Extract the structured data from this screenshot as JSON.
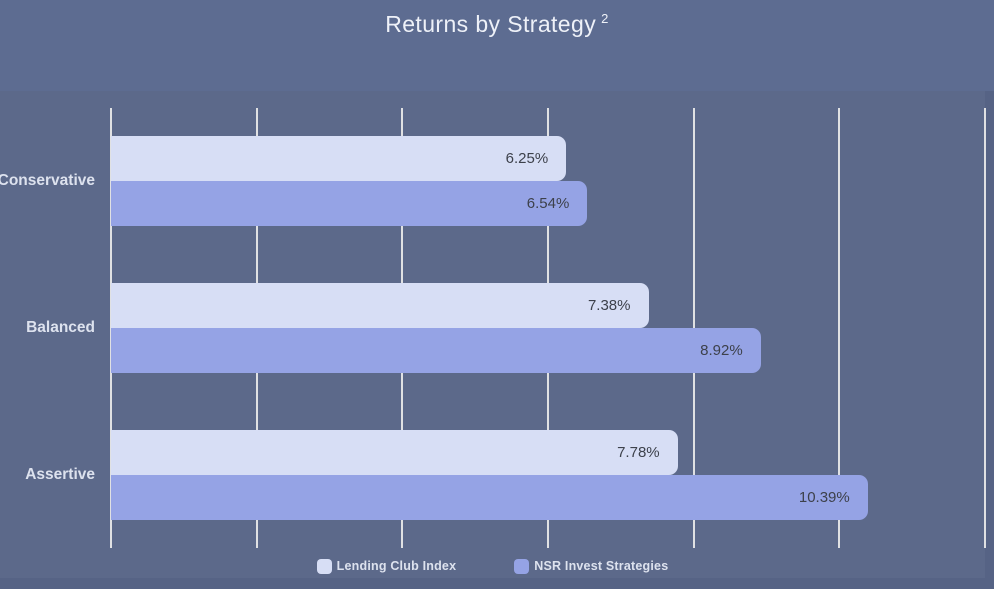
{
  "header": {
    "title": "Returns by Strategy",
    "superscript": "2"
  },
  "colors": {
    "header_bg": "#5d6c91",
    "chart_bg": "#5c698a",
    "outer_bg": "#566385",
    "bar_light": "#d7def5",
    "bar_medium": "#95a3e5",
    "grid": "#f2f1ef",
    "label_light": "#dde2ee",
    "value_dark": "#3d414b",
    "title_color": "#eef1f8"
  },
  "chart_data": {
    "type": "bar",
    "orientation": "horizontal",
    "title": "Returns by Strategy ²",
    "categories": [
      "Conservative",
      "Balanced",
      "Assertive"
    ],
    "series": [
      {
        "name": "Lending Club Index",
        "color_key": "bar_light",
        "values": [
          6.25,
          7.38,
          7.78
        ],
        "labels": [
          "6.25%",
          "7.38%",
          "7.78%"
        ]
      },
      {
        "name": "NSR Invest Strategies",
        "color_key": "bar_medium",
        "values": [
          6.54,
          8.92,
          10.39
        ],
        "labels": [
          "6.54%",
          "8.92%",
          "10.39%"
        ]
      }
    ],
    "xlabel": "",
    "ylabel": "",
    "xlim": [
      0,
      12
    ],
    "grid_step": 2,
    "grid": true,
    "legend_position": "bottom",
    "value_labels_visible": true,
    "axis_tick_labels_visible": false
  }
}
